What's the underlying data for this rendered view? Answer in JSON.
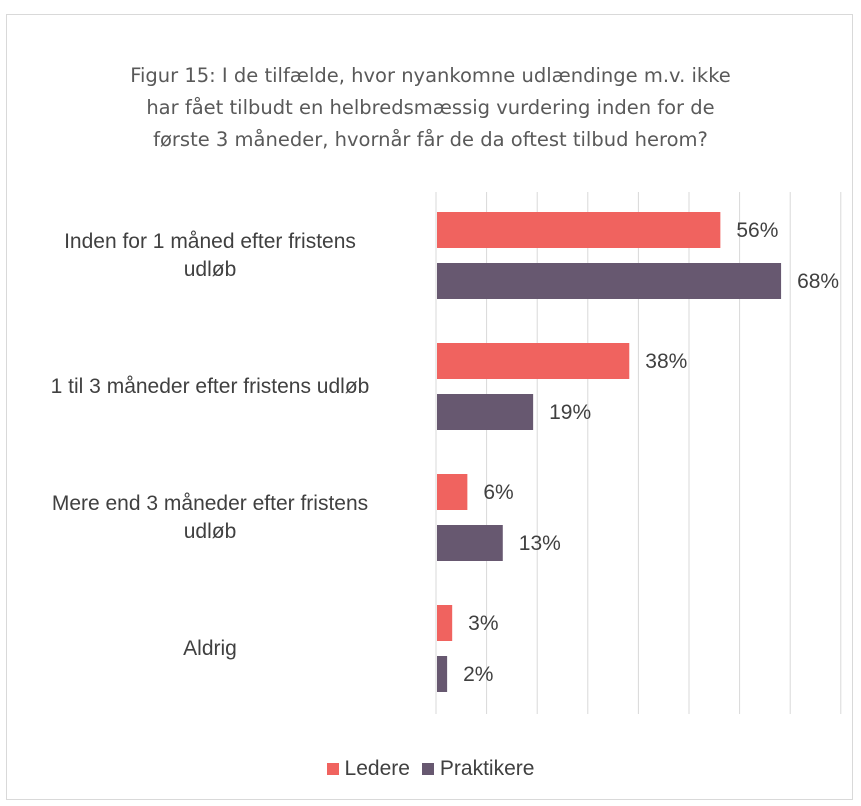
{
  "chart_data": {
    "type": "bar",
    "orientation": "horizontal",
    "title_lines": [
      "Figur  15: I de tilfælde, hvor nyankomne udlændinge m.v. ikke",
      "har fået tilbudt en helbredsmæssig vurdering inden for de",
      "første 3 måneder, hvornår får de da oftest tilbud herom?"
    ],
    "categories": [
      [
        "Inden for 1 måned efter fristens",
        "udløb"
      ],
      [
        "1 til 3 måneder efter fristens udløb"
      ],
      [
        "Mere end 3 måneder efter fristens",
        "udløb"
      ],
      [
        "Aldrig"
      ]
    ],
    "series": [
      {
        "name": "Ledere",
        "color": "#f0635f",
        "values": [
          56,
          38,
          6,
          3
        ],
        "labels": [
          "56%",
          "38%",
          "6%",
          "3%"
        ]
      },
      {
        "name": "Praktikere",
        "color": "#675870",
        "values": [
          68,
          19,
          13,
          2
        ],
        "labels": [
          "68%",
          "19%",
          "13%",
          "2%"
        ]
      }
    ],
    "xlim": [
      0,
      80
    ],
    "gridlines": true,
    "x_tick_labels_visible": false,
    "legend_position": "bottom"
  }
}
